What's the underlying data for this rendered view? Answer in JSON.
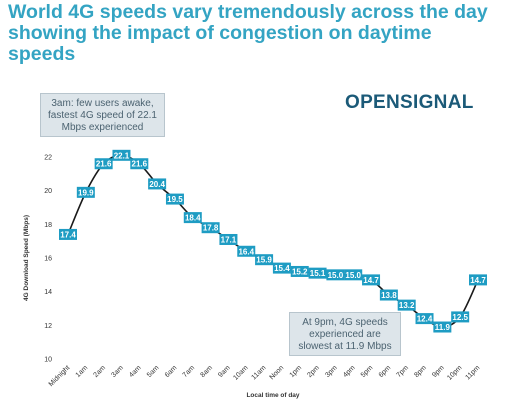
{
  "title": "World 4G speeds vary tremendously across the day showing the impact of congestion on daytime speeds",
  "logo": {
    "text": "OPENSIGNAL"
  },
  "annotations": {
    "top": "3am: few users awake, fastest 4G speed of 22.1 Mbps experienced",
    "bottom": "At 9pm, 4G speeds experienced are slowest at 11.9 Mbps"
  },
  "chart_data": {
    "type": "line",
    "title": "World 4G speeds vary tremendously across the day showing the impact of congestion on daytime speeds",
    "xlabel": "Local time of day",
    "ylabel": "4G Download Speed (Mbps)",
    "categories": [
      "Midnight",
      "1am",
      "2am",
      "3am",
      "4am",
      "5am",
      "6am",
      "7am",
      "8am",
      "9am",
      "10am",
      "11am",
      "Noon",
      "1pm",
      "2pm",
      "3pm",
      "4pm",
      "5pm",
      "6pm",
      "7pm",
      "8pm",
      "9pm",
      "10pm",
      "11pm"
    ],
    "values": [
      17.4,
      19.9,
      21.6,
      22.1,
      21.6,
      20.4,
      19.5,
      18.4,
      17.8,
      17.1,
      16.4,
      15.9,
      15.4,
      15.2,
      15.1,
      15.0,
      15.0,
      14.7,
      13.8,
      13.2,
      12.4,
      11.9,
      12.5,
      14.7
    ],
    "ylim": [
      10,
      22
    ],
    "yticks": [
      10,
      12,
      14,
      16,
      18,
      20,
      22
    ],
    "grid": false,
    "colors": {
      "line": "#1a1a1a",
      "label_box": "#1e9cc3"
    }
  }
}
